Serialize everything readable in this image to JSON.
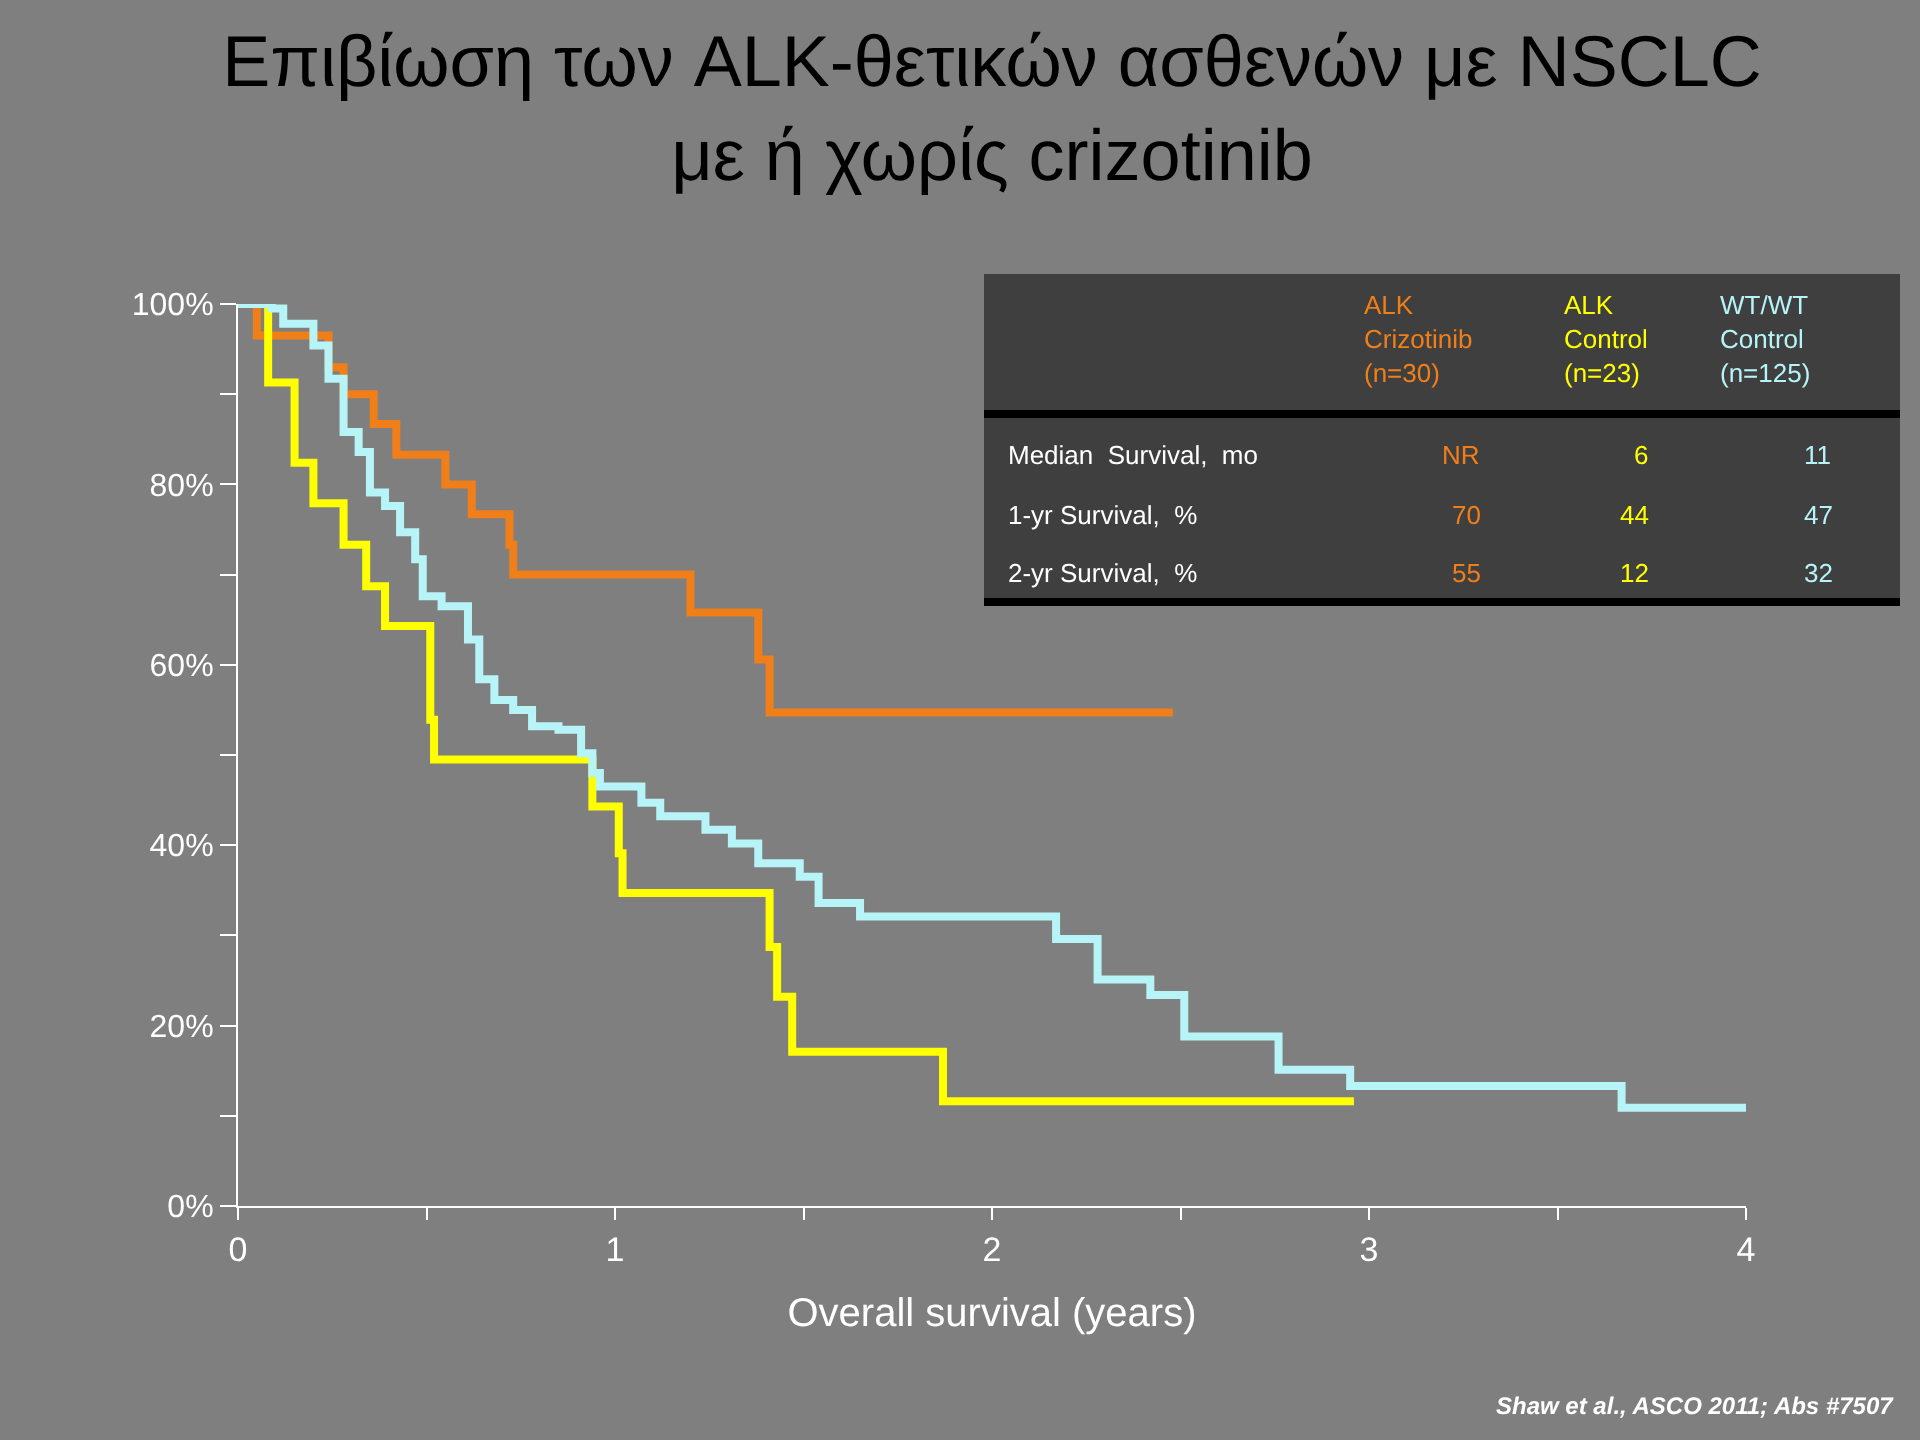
{
  "chart_data": {
    "type": "step",
    "title": "Επιβίωση των ALK-θετικών ασθενών με NSCLC\nμε ή χωρίς crizotinib",
    "xlabel": "Overall survival (years)",
    "xlim": [
      0,
      4
    ],
    "xticks": [
      0,
      {
        "value": 0.5,
        "label": null
      },
      1,
      {
        "value": 1.5,
        "label": null
      },
      2,
      {
        "value": 2.5,
        "label": null
      },
      3,
      {
        "value": 3.5,
        "label": null
      },
      4
    ],
    "ylim": [
      0,
      100
    ],
    "yticks": [
      {
        "value": 0,
        "label": "0%"
      },
      {
        "value": 10,
        "label": null
      },
      {
        "value": 20,
        "label": "20%"
      },
      {
        "value": 30,
        "label": null
      },
      {
        "value": 40,
        "label": "40%"
      },
      {
        "value": 50,
        "label": null
      },
      {
        "value": 60,
        "label": "60%"
      },
      {
        "value": 70,
        "label": null
      },
      {
        "value": 80,
        "label": "80%"
      },
      {
        "value": 90,
        "label": null
      },
      {
        "value": 100,
        "label": "100%"
      }
    ],
    "grid": false,
    "legend": false,
    "marker": "none",
    "line_style": "solid",
    "series": [
      {
        "name": "ALK Crizotinib (n=30)",
        "color": "#f07f1a",
        "x": [
          0.05,
          0.05,
          0.24,
          0.28,
          0.36,
          0.42,
          0.55,
          0.62,
          0.72,
          0.73,
          1.2,
          1.38,
          1.41,
          2.48
        ],
        "values": [
          100,
          96.5,
          93,
          90,
          86.7,
          83.3,
          80,
          76.7,
          73.3,
          70,
          65.8,
          60.6,
          54.7,
          54.7
        ]
      },
      {
        "name": "ALK Control (n=23)",
        "color": "#ffff00",
        "x": [
          0.05,
          0.08,
          0.15,
          0.2,
          0.28,
          0.34,
          0.39,
          0.51,
          0.52,
          0.94,
          1.01,
          1.02,
          1.41,
          1.43,
          1.47,
          1.87,
          2.96
        ],
        "values": [
          100,
          91.3,
          82.4,
          77.9,
          73.3,
          68.7,
          64.3,
          53.9,
          49.5,
          44.3,
          39.1,
          34.7,
          28.7,
          23.2,
          17.1,
          11.6,
          11.6
        ]
      },
      {
        "name": "WT/WT Control (n=125)",
        "color": "#b7f4f8",
        "x": [
          0,
          0.09,
          0.12,
          0.2,
          0.24,
          0.28,
          0.32,
          0.35,
          0.39,
          0.43,
          0.47,
          0.49,
          0.54,
          0.61,
          0.64,
          0.68,
          0.73,
          0.78,
          0.85,
          0.91,
          0.94,
          0.96,
          1.07,
          1.12,
          1.24,
          1.31,
          1.38,
          1.49,
          1.54,
          1.65,
          2.17,
          2.28,
          2.42,
          2.51,
          2.76,
          2.95,
          3.67,
          4.0
        ],
        "values": [
          100,
          99.5,
          97.8,
          95.4,
          91.7,
          85.8,
          83.6,
          79.1,
          77.6,
          74.7,
          71.7,
          67.6,
          66.5,
          62.8,
          58.4,
          56.1,
          55.0,
          53.2,
          52.8,
          50.2,
          48.0,
          46.5,
          44.7,
          43.2,
          41.7,
          40.2,
          38.0,
          36.5,
          33.6,
          32.1,
          29.6,
          25.1,
          23.4,
          18.8,
          15.1,
          13.3,
          10.9,
          10.9
        ]
      }
    ],
    "annotations": [
      "Median  Survival,  mo",
      "NR",
      "6",
      "11",
      "1-yr Survival,  %",
      "70",
      "44",
      "47",
      "2-yr Survival,  %",
      "55",
      "12",
      "32",
      "Shaw et al., ASCO 2011; Abs #7507"
    ]
  }
}
